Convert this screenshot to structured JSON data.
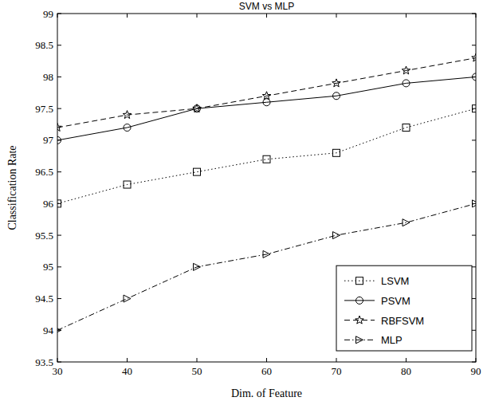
{
  "chart_data": {
    "type": "line",
    "title": "SVM vs MLP",
    "x_label": "Dim. of Feature",
    "y_label": "Classification Rate",
    "x": [
      30,
      40,
      50,
      60,
      70,
      80,
      90
    ],
    "series": [
      {
        "name": "LSVM",
        "color": "#000000",
        "marker": "square",
        "line_style": "dotted",
        "values": [
          96,
          96.3,
          96.5,
          96.7,
          96.8,
          97.2,
          97.5
        ]
      },
      {
        "name": "PSVM",
        "color": "#000000",
        "marker": "circle",
        "line_style": "solid",
        "values": [
          97,
          97.2,
          97.5,
          97.6,
          97.7,
          97.9,
          98
        ]
      },
      {
        "name": "RBFSVM",
        "color": "#000000",
        "marker": "pentagram",
        "line_style": "dashed",
        "values": [
          97.2,
          97.4,
          97.5,
          97.7,
          97.9,
          98.1,
          98.3
        ]
      },
      {
        "name": "MLP",
        "color": "#000000",
        "marker": "triangle-right",
        "line_style": "dashdot",
        "values": [
          94,
          94.5,
          95,
          95.2,
          95.5,
          95.7,
          96
        ]
      }
    ],
    "xlim": [
      30,
      90
    ],
    "xticks": [
      30,
      40,
      50,
      60,
      70,
      80,
      90
    ],
    "ylim": [
      93.5,
      99
    ],
    "yticks": [
      93.5,
      94,
      94.5,
      95,
      95.5,
      96,
      96.5,
      97,
      97.5,
      98,
      98.5,
      99
    ],
    "grid": false,
    "legend": "lower right"
  }
}
